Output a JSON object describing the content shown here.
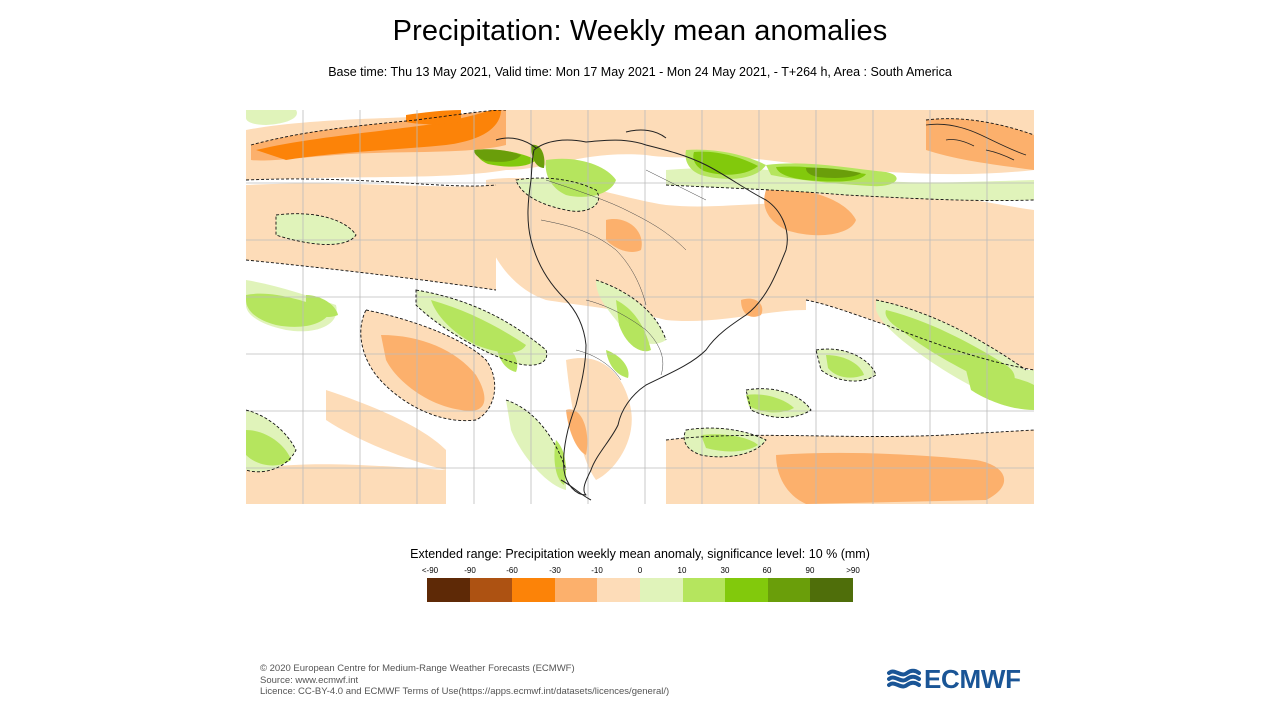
{
  "title": "Precipitation: Weekly mean anomalies",
  "subtitle": "Base time: Thu 13 May 2021, Valid time: Mon 17 May 2021 - Mon 24 May 2021, - T+264 h, Area : South America",
  "map": {
    "region": "South America",
    "colors": {
      "land_line": "#222222",
      "grid_line": "#bbbbbb",
      "contour": "#111111"
    }
  },
  "legend": {
    "title": "Extended range: Precipitation weekly mean anomaly, significance level: 10 % (mm)",
    "ticks": [
      "<-90",
      "-90",
      "-60",
      "-30",
      "-10",
      "0",
      "10",
      "30",
      "60",
      "90",
      ">90"
    ],
    "colors": [
      "#5e2906",
      "#ad5212",
      "#fc8308",
      "#fcb06c",
      "#fddcb8",
      "#e0f3ba",
      "#b5e55e",
      "#82c90c",
      "#6a9e0a",
      "#4f6e0a"
    ]
  },
  "footer": {
    "copyright": "© 2020 European Centre for Medium-Range Weather Forecasts (ECMWF)",
    "source": "Source: www.ecmwf.int",
    "licence": "Licence: CC-BY-4.0 and ECMWF Terms of Use(https://apps.ecmwf.int/datasets/licences/general/)"
  },
  "logo": {
    "text": "ECMWF",
    "color": "#1a5596"
  }
}
